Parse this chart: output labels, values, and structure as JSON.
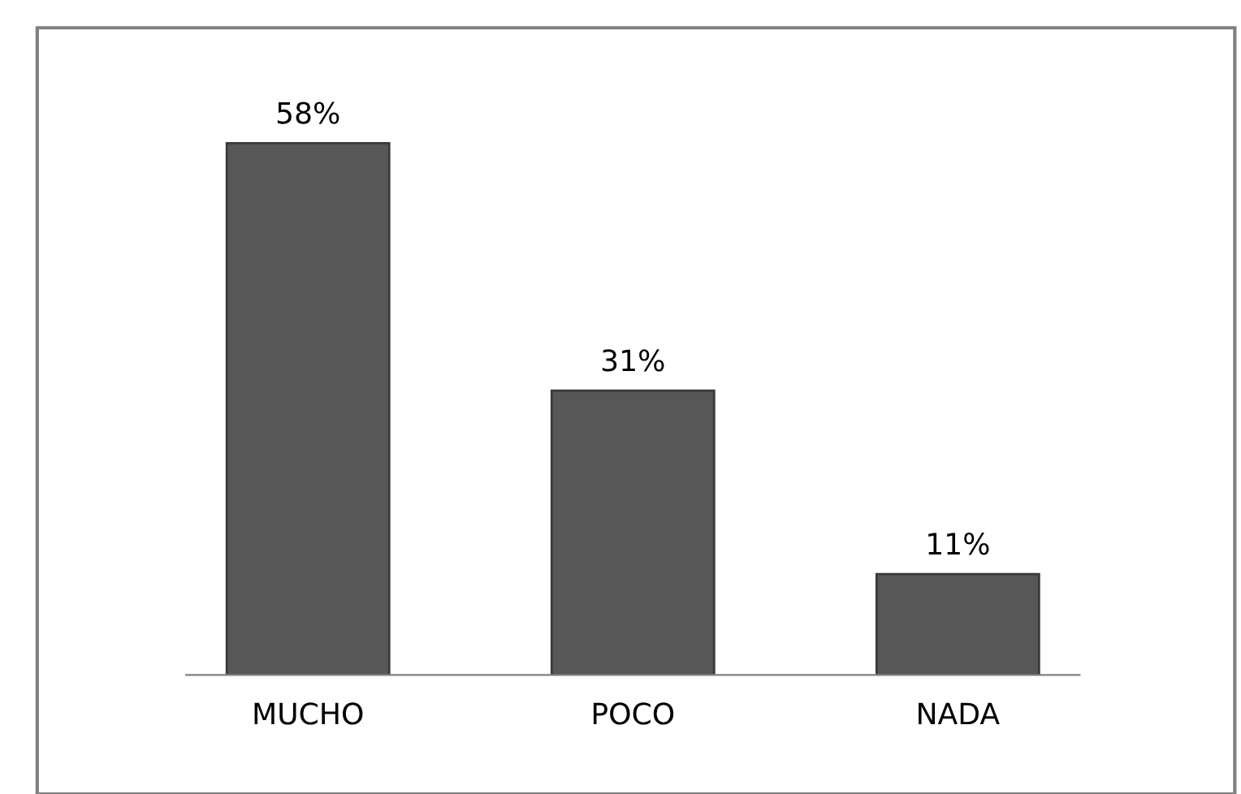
{
  "chart_data": {
    "type": "bar",
    "categories": [
      "MUCHO",
      "POCO",
      "NADA"
    ],
    "values": [
      58,
      31,
      11
    ],
    "value_labels": [
      "58%",
      "31%",
      "11%"
    ],
    "color": "#575757",
    "grid": false,
    "legend": false
  }
}
